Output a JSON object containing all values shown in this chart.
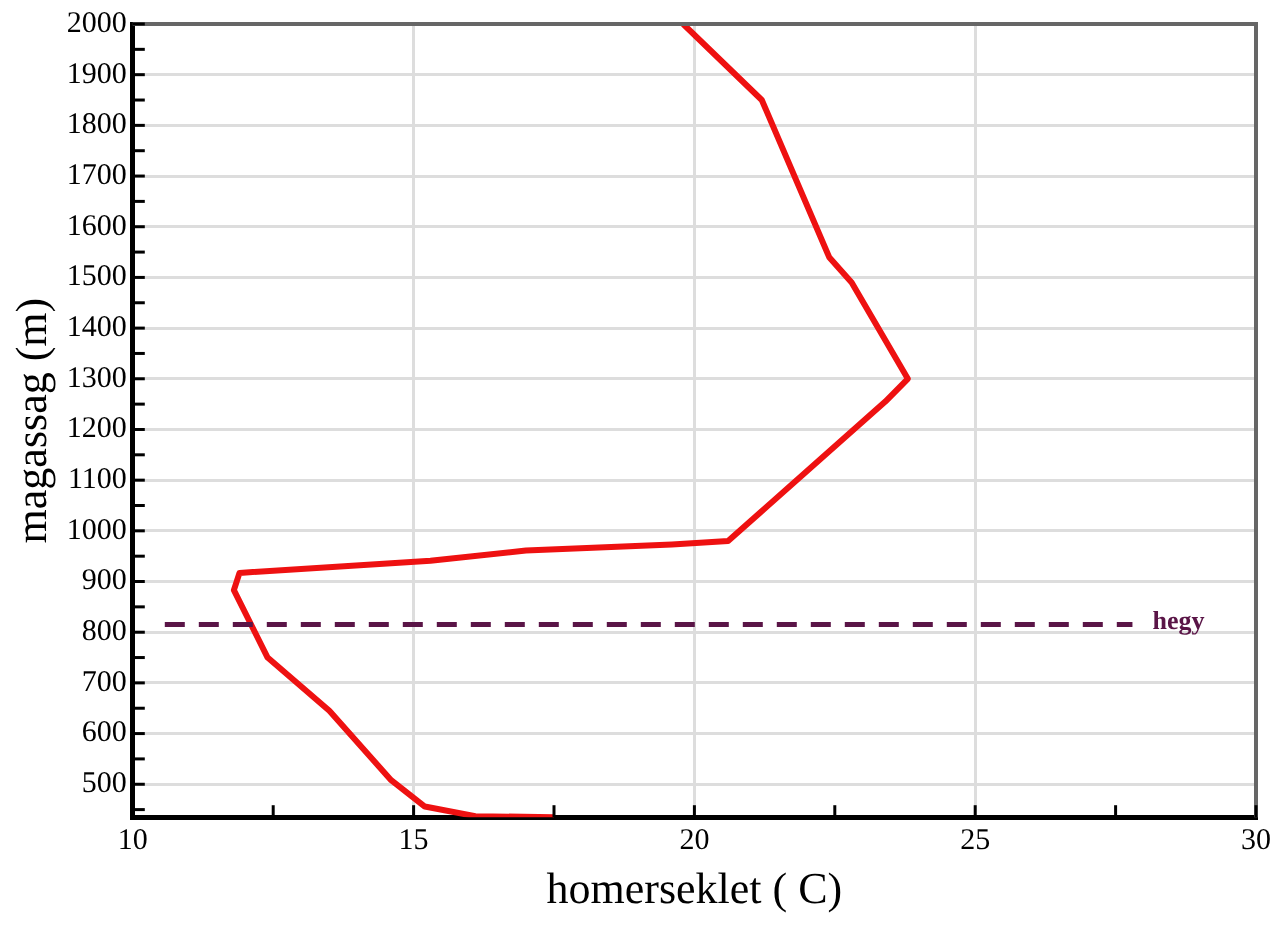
{
  "chart_data": {
    "type": "line",
    "xlabel": "homerseklet ( C)",
    "ylabel": "magassag (m)",
    "series": [
      {
        "color": "#ee1111",
        "x": [
          19.8,
          21.2,
          22.4,
          22.8,
          23.8,
          23.4,
          20.6,
          19.6,
          17.0,
          15.3,
          11.9,
          11.8,
          12.4,
          13.5,
          14.6,
          15.2,
          16.1,
          17.5
        ],
        "values": [
          2000,
          1850,
          1540,
          1490,
          1300,
          1255,
          980,
          973,
          961,
          941,
          917,
          883,
          750,
          645,
          508,
          456,
          437,
          435
        ]
      }
    ],
    "xlim": [
      10,
      30
    ],
    "xticks": [
      10,
      {
        "value": 12.5,
        "label": null
      },
      15,
      {
        "value": 17.5,
        "label": null
      },
      20,
      {
        "value": 22.5,
        "label": null
      },
      25,
      {
        "value": 27.5,
        "label": null
      },
      30
    ],
    "ylim": [
      435,
      2000
    ],
    "yticks": [
      {
        "value": 450,
        "label": null
      },
      500,
      {
        "value": 550,
        "label": null
      },
      600,
      {
        "value": 650,
        "label": null
      },
      700,
      {
        "value": 750,
        "label": null
      },
      800,
      {
        "value": 850,
        "label": null
      },
      900,
      {
        "value": 950,
        "label": null
      },
      1000,
      {
        "value": 1050,
        "label": null
      },
      1100,
      {
        "value": 1150,
        "label": null
      },
      1200,
      {
        "value": 1250,
        "label": null
      },
      1300,
      {
        "value": 1350,
        "label": null
      },
      1400,
      {
        "value": 1450,
        "label": null
      },
      1500,
      {
        "value": 1550,
        "label": null
      },
      1600,
      {
        "value": 1650,
        "label": null
      },
      1700,
      {
        "value": 1750,
        "label": null
      },
      1800,
      {
        "value": 1850,
        "label": null
      },
      1900,
      {
        "value": 1950,
        "label": null
      },
      2000
    ],
    "ref_lines": [
      {
        "axis": "y",
        "value": 815,
        "label": "hegy",
        "color": "#5a1547",
        "line_style": "dashed"
      }
    ],
    "grid": true,
    "legend": false,
    "marker": "none",
    "line_style": "solid"
  }
}
